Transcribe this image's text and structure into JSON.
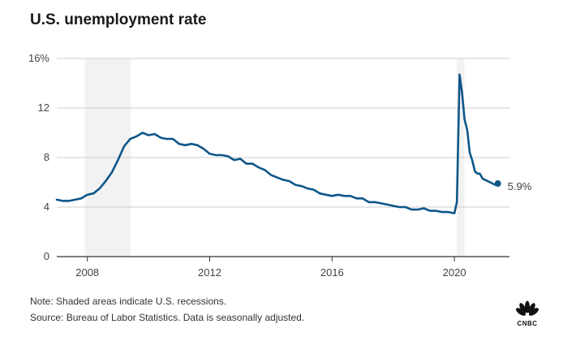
{
  "title": "U.S. unemployment rate",
  "note": "Note: Shaded areas indicate U.S. recessions.",
  "source": "Source: Bureau of Labor Statistics. Data is seasonally adjusted.",
  "logo_text": "CNBC",
  "colors": {
    "line": "#0e5689",
    "recession": "#f2f2f2",
    "grid": "#cccccc",
    "axis": "#333333"
  },
  "chart_data": {
    "type": "line",
    "title": "U.S. unemployment rate",
    "xlabel": "",
    "ylabel": "",
    "xlim": [
      2007.0,
      2021.8
    ],
    "ylim": [
      0,
      16
    ],
    "grid": true,
    "x_ticks": [
      2008,
      2012,
      2016,
      2020
    ],
    "x_tick_labels": [
      "2008",
      "2012",
      "2016",
      "2020"
    ],
    "y_ticks": [
      0,
      4,
      8,
      12,
      16
    ],
    "y_tick_labels": [
      "0",
      "4",
      "8",
      "12",
      "16%"
    ],
    "recessions": [
      [
        2007.92,
        2009.42
      ],
      [
        2020.08,
        2020.33
      ]
    ],
    "end_label": "5.9%",
    "series": [
      {
        "x": [
          2007.0,
          2007.2,
          2007.4,
          2007.6,
          2007.8,
          2008.0,
          2008.2,
          2008.4,
          2008.6,
          2008.8,
          2009.0,
          2009.2,
          2009.4,
          2009.6,
          2009.8,
          2010.0,
          2010.2,
          2010.4,
          2010.6,
          2010.8,
          2011.0,
          2011.2,
          2011.4,
          2011.6,
          2011.8,
          2012.0,
          2012.2,
          2012.4,
          2012.6,
          2012.8,
          2013.0,
          2013.2,
          2013.4,
          2013.6,
          2013.8,
          2014.0,
          2014.2,
          2014.4,
          2014.6,
          2014.8,
          2015.0,
          2015.2,
          2015.4,
          2015.6,
          2015.8,
          2016.0,
          2016.2,
          2016.4,
          2016.6,
          2016.8,
          2017.0,
          2017.2,
          2017.4,
          2017.6,
          2017.8,
          2018.0,
          2018.2,
          2018.4,
          2018.6,
          2018.8,
          2019.0,
          2019.2,
          2019.4,
          2019.6,
          2019.8,
          2020.0,
          2020.08,
          2020.17,
          2020.25,
          2020.33,
          2020.42,
          2020.5,
          2020.58,
          2020.67,
          2020.75,
          2020.83,
          2020.92,
          2021.0,
          2021.17,
          2021.33,
          2021.42
        ],
        "values": [
          4.6,
          4.5,
          4.5,
          4.6,
          4.7,
          5.0,
          5.1,
          5.5,
          6.1,
          6.8,
          7.8,
          8.9,
          9.5,
          9.7,
          10.0,
          9.8,
          9.9,
          9.6,
          9.5,
          9.5,
          9.1,
          9.0,
          9.1,
          9.0,
          8.7,
          8.3,
          8.2,
          8.2,
          8.1,
          7.8,
          7.9,
          7.5,
          7.5,
          7.2,
          7.0,
          6.6,
          6.4,
          6.2,
          6.1,
          5.8,
          5.7,
          5.5,
          5.4,
          5.1,
          5.0,
          4.9,
          5.0,
          4.9,
          4.9,
          4.7,
          4.7,
          4.4,
          4.4,
          4.3,
          4.2,
          4.1,
          4.0,
          4.0,
          3.8,
          3.8,
          3.9,
          3.7,
          3.7,
          3.6,
          3.6,
          3.5,
          4.4,
          14.7,
          13.2,
          11.1,
          10.2,
          8.4,
          7.8,
          6.9,
          6.7,
          6.7,
          6.3,
          6.2,
          6.0,
          5.8,
          5.9
        ]
      }
    ]
  }
}
